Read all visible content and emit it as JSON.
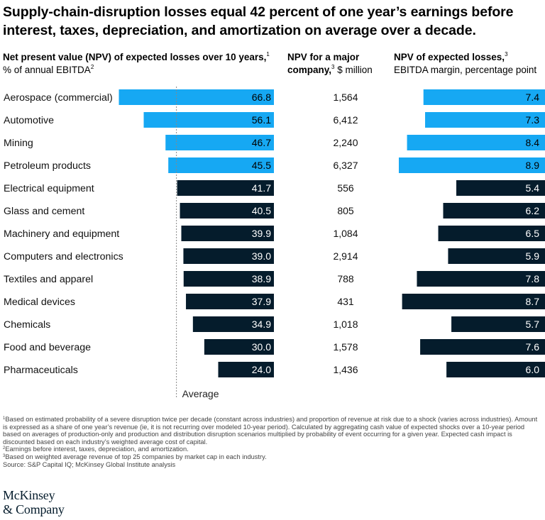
{
  "title": "Supply-chain-disruption losses equal 42 percent of one year’s earnings before interest, taxes, depreciation, and amortization on average over a decade.",
  "headers": {
    "npv_bold": "Net present value (NPV) of expected losses over 10 years,",
    "npv_sup1": "1",
    "npv_rest": " % of annual EBITDA",
    "npv_sup2": "2",
    "company_bold": "NPV for a major company,",
    "company_sup": "3",
    "company_rest": " $ million",
    "margin_bold": "NPV of expected losses,",
    "margin_sup": "3",
    "margin_rest": "EBITDA margin, percentage point"
  },
  "chart_data": {
    "type": "bar",
    "categories": [
      "Aerospace (commercial)",
      "Automotive",
      "Mining",
      "Petroleum products",
      "Electrical equipment",
      "Glass and cement",
      "Machinery and equipment",
      "Computers and electronics",
      "Textiles and apparel",
      "Medical devices",
      "Chemicals",
      "Food and beverage",
      "Pharmaceuticals"
    ],
    "npv_pct_ebitda": [
      66.8,
      56.1,
      46.7,
      45.5,
      41.7,
      40.5,
      39.9,
      39.0,
      38.9,
      37.9,
      34.9,
      30.0,
      24.0
    ],
    "npv_labels": [
      "66.8",
      "56.1",
      "46.7",
      "45.5",
      "41.7",
      "40.5",
      "39.9",
      "39.0",
      "38.9",
      "37.9",
      "34.9",
      "30.0",
      "24.0"
    ],
    "npv_major_company_musd": [
      "1,564",
      "6,412",
      "2,240",
      "6,327",
      "556",
      "805",
      "1,084",
      "2,914",
      "788",
      "431",
      "1,018",
      "1,578",
      "1,436"
    ],
    "ebitda_margin_pp": [
      7.4,
      7.3,
      8.4,
      8.9,
      5.4,
      6.2,
      6.5,
      5.9,
      7.8,
      8.7,
      5.7,
      7.6,
      6.0
    ],
    "margin_labels": [
      "7.4",
      "7.3",
      "8.4",
      "8.9",
      "5.4",
      "6.2",
      "6.5",
      "5.9",
      "7.8",
      "8.7",
      "5.7",
      "7.6",
      "6.0"
    ],
    "highlight_count": 4,
    "average_value": 42,
    "average_label": "Average",
    "colors": {
      "highlight": "#16a8f3",
      "default": "#051c2c",
      "average_line": "#888888"
    }
  },
  "footnotes": [
    {
      "sup": "1",
      "text": "Based on estimated probability of a severe disruption twice per decade (constant across industries) and proportion of revenue at risk due to a shock (varies across industries). Amount is expressed as a share of one year’s revenue (ie, it is not recurring over modeled 10-year period). Calculated by aggregating cash value of expected shocks over a 10-year period based on averages of production-only and production and distribution disruption scenarios multiplied by probability of event occurring for a given year. Expected cash impact is discounted based on each industry’s weighted average cost of capital."
    },
    {
      "sup": "2",
      "text": "Earnings before interest, taxes, depreciation, and amortization."
    },
    {
      "sup": "3",
      "text": "Based on weighted average revenue of top 25 companies by market cap in each industry."
    },
    {
      "sup": "",
      "text": "Source: S&P Capital IQ; McKinsey Global Institute analysis"
    }
  ],
  "logo": {
    "line1": "McKinsey",
    "line2": "& Company"
  }
}
